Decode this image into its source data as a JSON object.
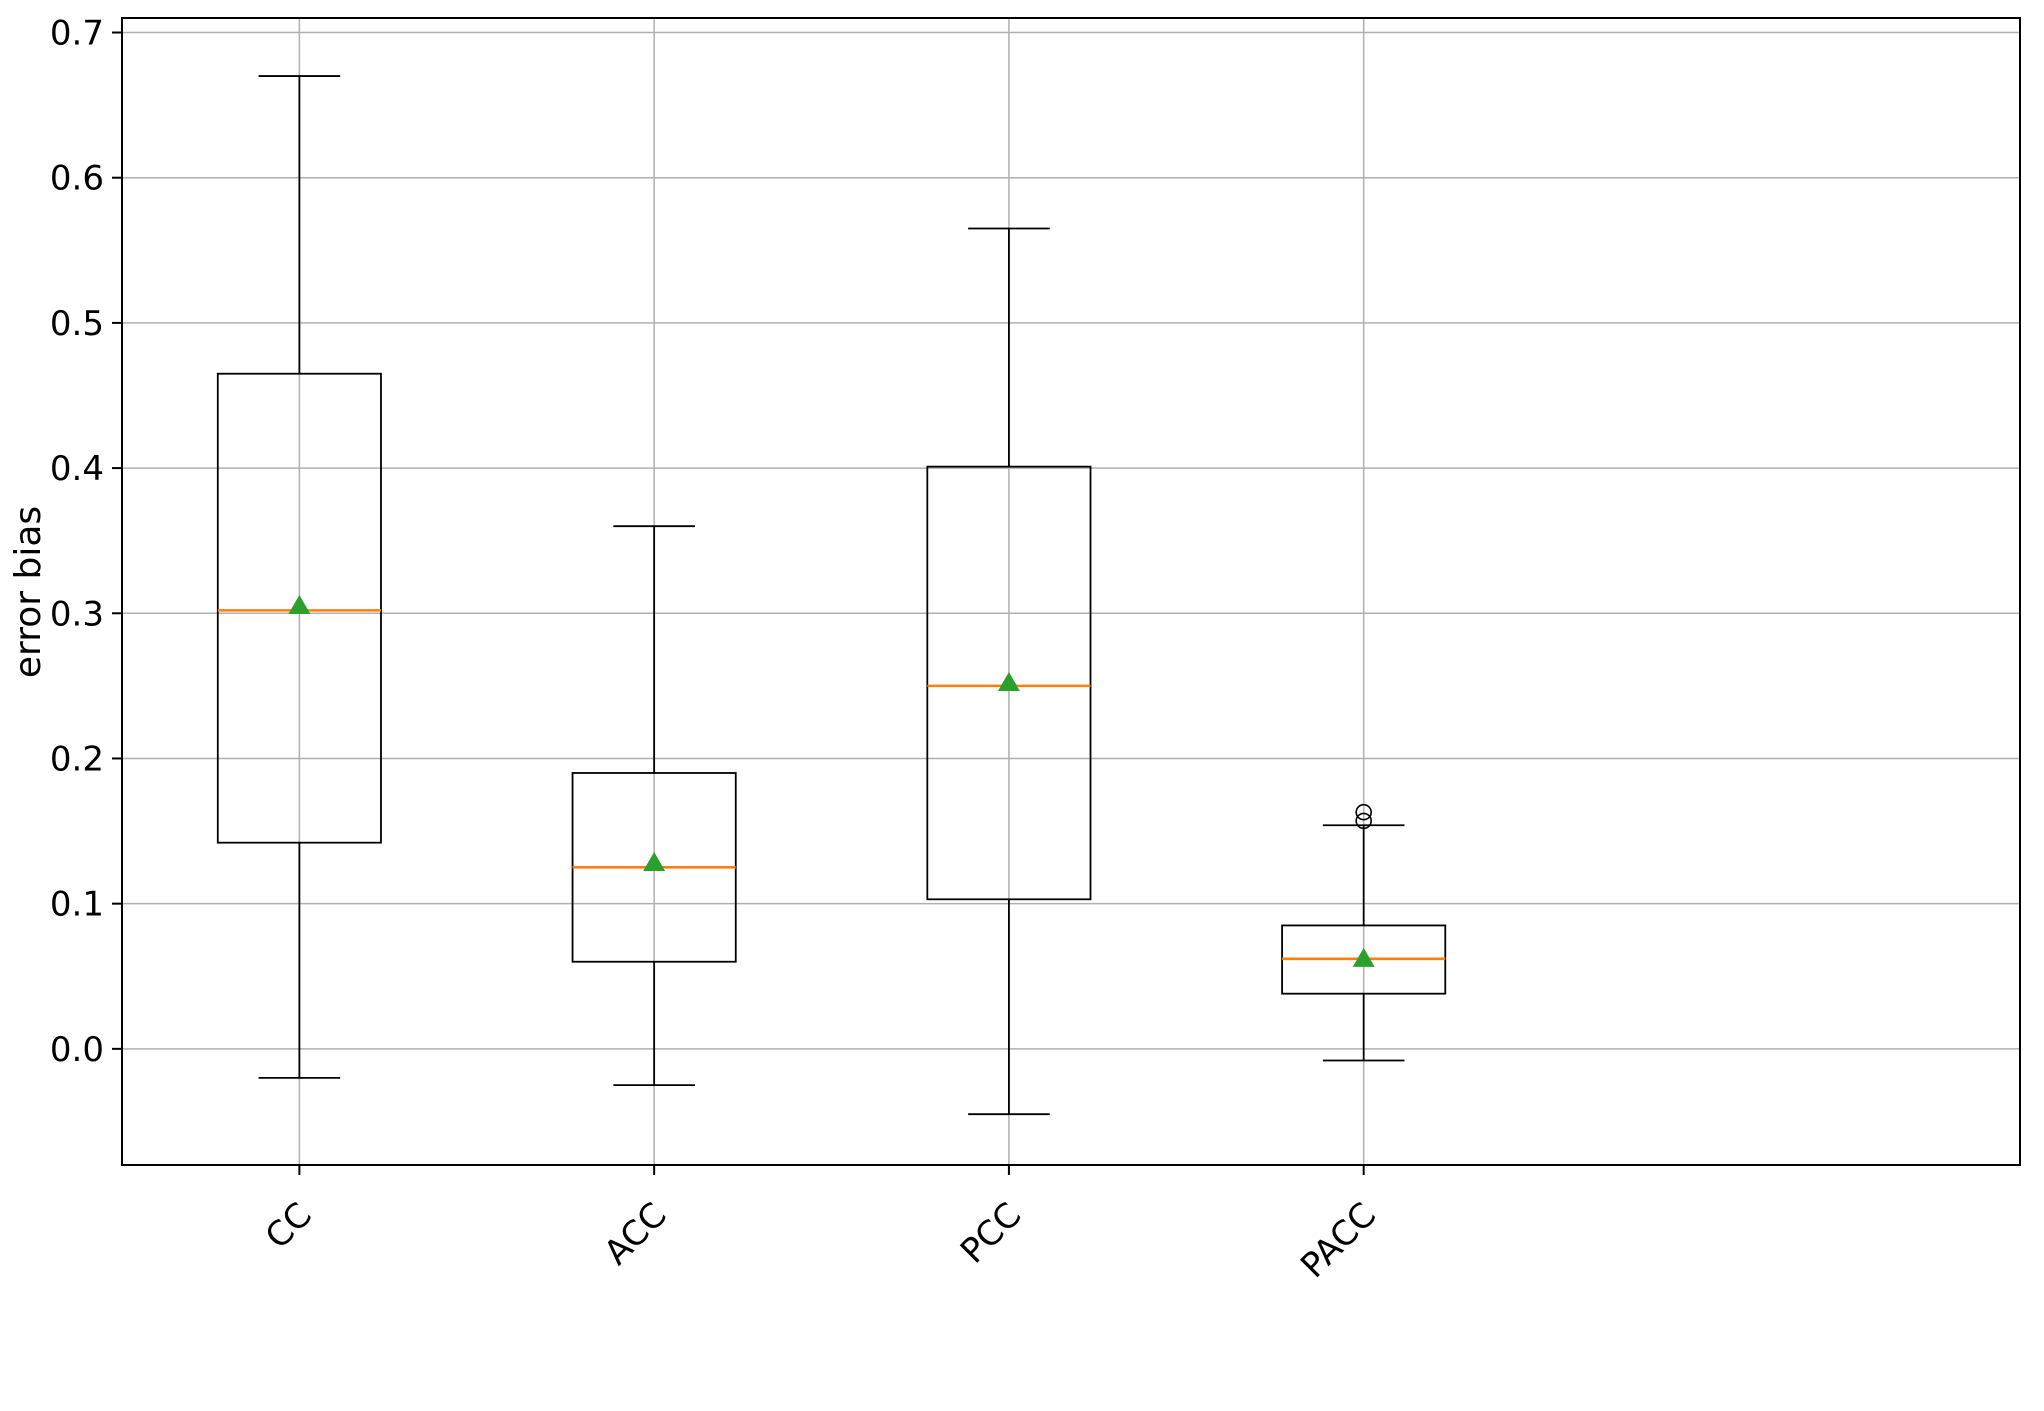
{
  "chart_data": {
    "type": "boxplot",
    "title": "",
    "xlabel": "",
    "ylabel": "error bias",
    "categories": [
      "CC",
      "ACC",
      "PCC",
      "PACC"
    ],
    "positions": [
      1,
      2,
      3,
      4
    ],
    "xlim": [
      0.5,
      5.85
    ],
    "ylim": [
      -0.08,
      0.71
    ],
    "yticks": [
      0.0,
      0.1,
      0.2,
      0.3,
      0.4,
      0.5,
      0.6,
      0.7
    ],
    "grid": true,
    "box_width": 0.46,
    "series": [
      {
        "category": "CC",
        "whisker_low": -0.02,
        "q1": 0.142,
        "median": 0.302,
        "mean": 0.305,
        "q3": 0.465,
        "whisker_high": 0.67,
        "outliers": []
      },
      {
        "category": "ACC",
        "whisker_low": -0.025,
        "q1": 0.06,
        "median": 0.125,
        "mean": 0.128,
        "q3": 0.19,
        "whisker_high": 0.36,
        "outliers": []
      },
      {
        "category": "PCC",
        "whisker_low": -0.045,
        "q1": 0.103,
        "median": 0.25,
        "mean": 0.252,
        "q3": 0.401,
        "whisker_high": 0.565,
        "outliers": []
      },
      {
        "category": "PACC",
        "whisker_low": -0.008,
        "q1": 0.038,
        "median": 0.062,
        "mean": 0.062,
        "q3": 0.085,
        "whisker_high": 0.154,
        "outliers": [
          0.157,
          0.163
        ]
      }
    ],
    "colors": {
      "median": "#ff7f0e",
      "mean_marker": "#2ca02c",
      "box_edge": "#000000",
      "grid": "#b0b0b0",
      "background": "#ffffff"
    },
    "markers": {
      "mean": "triangle-up",
      "outlier": "open-circle"
    }
  }
}
